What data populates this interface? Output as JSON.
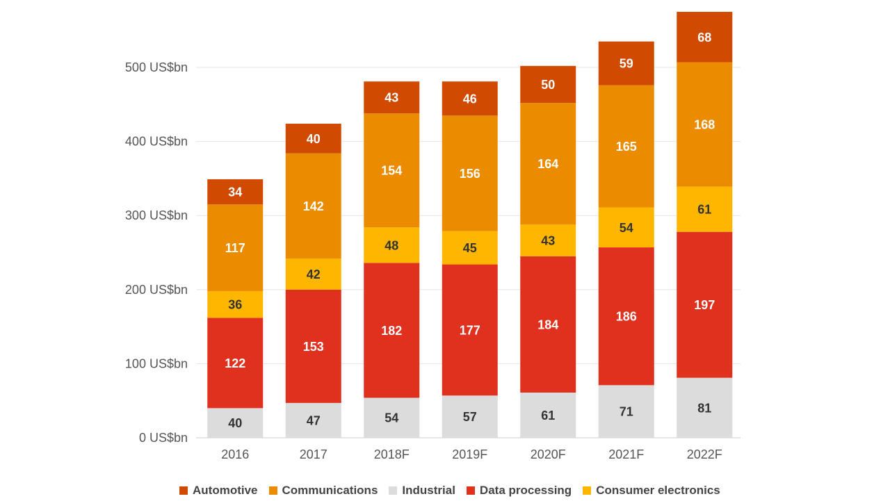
{
  "chart_data": {
    "type": "bar",
    "stacked": true,
    "categories": [
      "2016",
      "2017",
      "2018F",
      "2019F",
      "2020F",
      "2021F",
      "2022F"
    ],
    "series": [
      {
        "name": "Industrial",
        "color": "#dcdcdc",
        "label_color": "#333333",
        "values": [
          40,
          47,
          54,
          57,
          61,
          71,
          81
        ]
      },
      {
        "name": "Data processing",
        "color": "#e0301e",
        "label_color": "#ffffff",
        "values": [
          122,
          153,
          182,
          177,
          184,
          186,
          197
        ]
      },
      {
        "name": "Consumer electronics",
        "color": "#ffb600",
        "label_color": "#333333",
        "values": [
          36,
          42,
          48,
          45,
          43,
          54,
          61
        ]
      },
      {
        "name": "Communications",
        "color": "#eb8c00",
        "label_color": "#ffffff",
        "values": [
          117,
          142,
          154,
          156,
          164,
          165,
          168
        ]
      },
      {
        "name": "Automotive",
        "color": "#d04a02",
        "label_color": "#ffffff",
        "values": [
          34,
          40,
          43,
          46,
          50,
          59,
          68
        ]
      }
    ],
    "yticks": [
      0,
      100,
      200,
      300,
      400,
      500
    ],
    "ytick_labels": [
      "0 US$bn",
      "100 US$bn",
      "200 US$bn",
      "300 US$bn",
      "400 US$bn",
      "500 US$bn"
    ],
    "ylim": [
      0,
      580
    ],
    "grid": true,
    "legend_position": "bottom",
    "legend_order": [
      "Automotive",
      "Communications",
      "Industrial",
      "Data processing",
      "Consumer electronics"
    ]
  }
}
